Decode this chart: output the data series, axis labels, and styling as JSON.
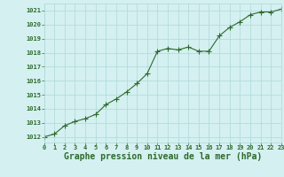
{
  "x": [
    0,
    1,
    2,
    3,
    4,
    5,
    6,
    7,
    8,
    9,
    10,
    11,
    12,
    13,
    14,
    15,
    16,
    17,
    18,
    19,
    20,
    21,
    22,
    23
  ],
  "y": [
    1012.0,
    1012.2,
    1012.8,
    1013.1,
    1013.3,
    1013.6,
    1014.3,
    1014.7,
    1015.2,
    1015.8,
    1016.5,
    1018.1,
    1018.3,
    1018.2,
    1018.4,
    1018.1,
    1018.1,
    1019.2,
    1019.8,
    1020.2,
    1020.7,
    1020.9,
    1020.9,
    1021.1
  ],
  "line_color": "#2d6a2d",
  "marker": "+",
  "marker_color": "#2d6a2d",
  "marker_size": 4,
  "background_color": "#d4f0f0",
  "grid_color": "#b0d8d8",
  "xlabel": "Graphe pression niveau de la mer (hPa)",
  "xlabel_fontsize": 7,
  "xlabel_color": "#2d6a2d",
  "ylabel_ticks": [
    1012,
    1013,
    1014,
    1015,
    1016,
    1017,
    1018,
    1019,
    1020,
    1021
  ],
  "xlim": [
    0,
    23
  ],
  "ylim": [
    1011.6,
    1021.5
  ],
  "xticks": [
    0,
    1,
    2,
    3,
    4,
    5,
    6,
    7,
    8,
    9,
    10,
    11,
    12,
    13,
    14,
    15,
    16,
    17,
    18,
    19,
    20,
    21,
    22,
    23
  ],
  "tick_fontsize": 5,
  "tick_color": "#2d6a2d",
  "line_width": 0.8,
  "figwidth": 3.2,
  "figheight": 2.0,
  "dpi": 100
}
